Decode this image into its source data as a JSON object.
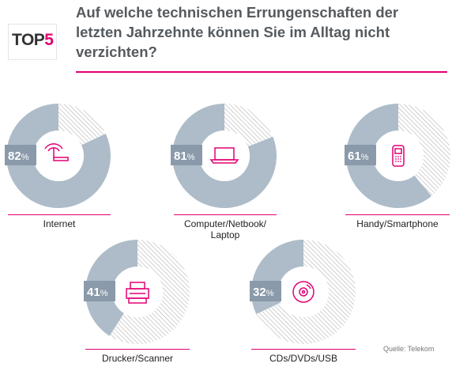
{
  "logo": {
    "text": "TOP",
    "accent": "5"
  },
  "title": "Auf welche technischen Errungenschaften der letzten Jahrzehnte können Sie im Alltag nicht verzichten?",
  "source": "Quelle: Telekom",
  "colors": {
    "magenta": "#e20074",
    "donut": "#adbcc8",
    "hatch": "#b3b3b3",
    "badge": "#8a9aaa"
  },
  "chart_data": {
    "type": "pie",
    "title": "Auf welche technischen Errungenschaften der letzten Jahrzehnte können Sie im Alltag nicht verzichten?",
    "categories": [
      "Internet",
      "Computer/Netbook/ Laptop",
      "Handy/Smartphone",
      "Drucker/Scanner",
      "CDs/DVDs/USB"
    ],
    "values": [
      82,
      81,
      61,
      41,
      32
    ],
    "value_labels": [
      "82%",
      "81%",
      "61%",
      "41%",
      "32%"
    ],
    "icons": [
      "wifi-router-icon",
      "laptop-icon",
      "smartphone-icon",
      "printer-icon",
      "cd-icon"
    ]
  }
}
